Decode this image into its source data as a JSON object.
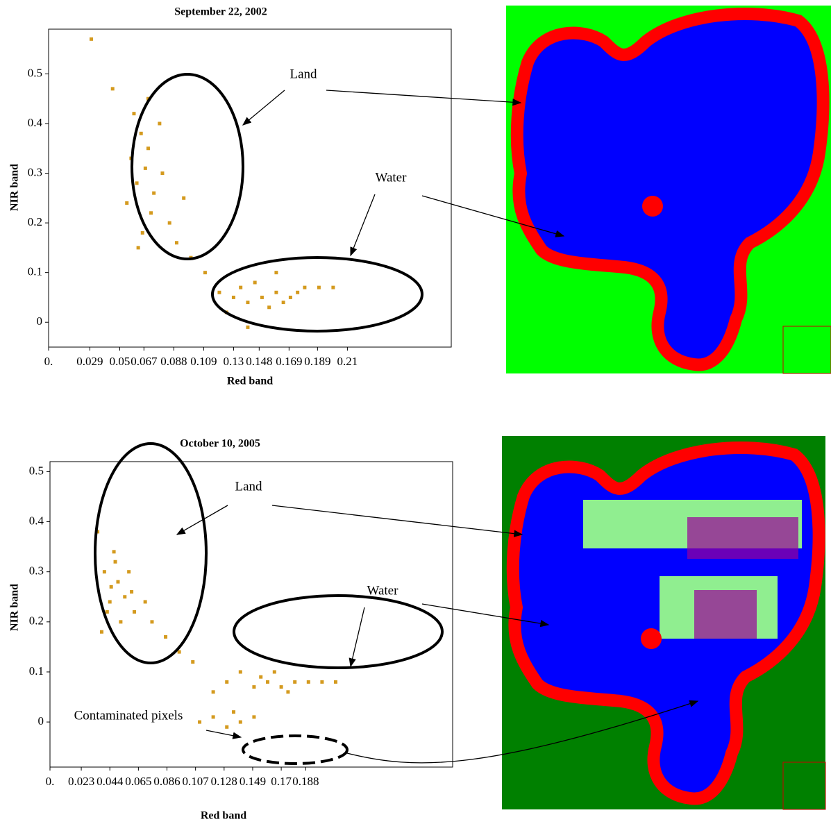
{
  "chart_data": [
    {
      "type": "scatter",
      "title": "September 22, 2002",
      "x_label": "Red band",
      "y_label": "NIR band",
      "xlim": [
        0,
        0.283
      ],
      "ylim": [
        -0.05,
        0.59
      ],
      "xticks": [
        {
          "value": 0,
          "label": "0."
        },
        0.029,
        0.05,
        0.067,
        0.088,
        0.109,
        0.13,
        0.148,
        0.169,
        0.189,
        0.21
      ],
      "yticks": [
        0,
        0.1,
        0.2,
        0.3,
        0.4,
        0.5
      ],
      "annotations": [
        "Land",
        "Water"
      ],
      "series": [
        {
          "color": "#d49a1e",
          "x": [
            0.06,
            0.065,
            0.07,
            0.068,
            0.062,
            0.074,
            0.058,
            0.078,
            0.072,
            0.066,
            0.08,
            0.055,
            0.085,
            0.07,
            0.063,
            0.09,
            0.1,
            0.11,
            0.03,
            0.045,
            0.095,
            0.12,
            0.13,
            0.14,
            0.15,
            0.16,
            0.17,
            0.18,
            0.19,
            0.2,
            0.155,
            0.165,
            0.175,
            0.135,
            0.145,
            0.125,
            0.16,
            0.14
          ],
          "values": [
            0.42,
            0.38,
            0.35,
            0.31,
            0.28,
            0.26,
            0.33,
            0.4,
            0.22,
            0.18,
            0.3,
            0.24,
            0.2,
            0.45,
            0.15,
            0.16,
            0.13,
            0.1,
            0.57,
            0.47,
            0.25,
            0.06,
            0.05,
            0.04,
            0.05,
            0.06,
            0.05,
            0.07,
            0.07,
            0.07,
            0.03,
            0.04,
            0.06,
            0.07,
            0.08,
            0.02,
            0.1,
            -0.01
          ]
        }
      ]
    },
    {
      "type": "scatter",
      "title": "October 10, 2005",
      "x_label": "Red band",
      "y_label": "NIR band",
      "xlim": [
        0,
        0.296
      ],
      "ylim": [
        -0.09,
        0.52
      ],
      "xticks": [
        {
          "value": 0,
          "label": "0."
        },
        0.023,
        0.044,
        0.065,
        0.086,
        0.107,
        0.128,
        0.149,
        0.17,
        0.188
      ],
      "yticks": [
        0,
        0.1,
        0.2,
        0.3,
        0.4,
        0.5
      ],
      "annotations": [
        "Land",
        "Water",
        "Contaminated pixels"
      ],
      "series": [
        {
          "color": "#d49a1e",
          "x": [
            0.04,
            0.045,
            0.05,
            0.055,
            0.048,
            0.042,
            0.052,
            0.06,
            0.038,
            0.047,
            0.058,
            0.044,
            0.062,
            0.075,
            0.085,
            0.095,
            0.105,
            0.035,
            0.07,
            0.13,
            0.15,
            0.16,
            0.17,
            0.18,
            0.19,
            0.2,
            0.21,
            0.14,
            0.155,
            0.175,
            0.12,
            0.165,
            0.11,
            0.12,
            0.13,
            0.14,
            0.15,
            0.135
          ],
          "values": [
            0.3,
            0.27,
            0.28,
            0.25,
            0.32,
            0.22,
            0.2,
            0.26,
            0.18,
            0.34,
            0.3,
            0.24,
            0.22,
            0.2,
            0.17,
            0.14,
            0.12,
            0.38,
            0.24,
            0.08,
            0.07,
            0.08,
            0.07,
            0.08,
            0.08,
            0.08,
            0.08,
            0.1,
            0.09,
            0.06,
            0.06,
            0.1,
            0.0,
            0.01,
            -0.01,
            0.0,
            0.01,
            0.02
          ]
        }
      ]
    }
  ]
}
